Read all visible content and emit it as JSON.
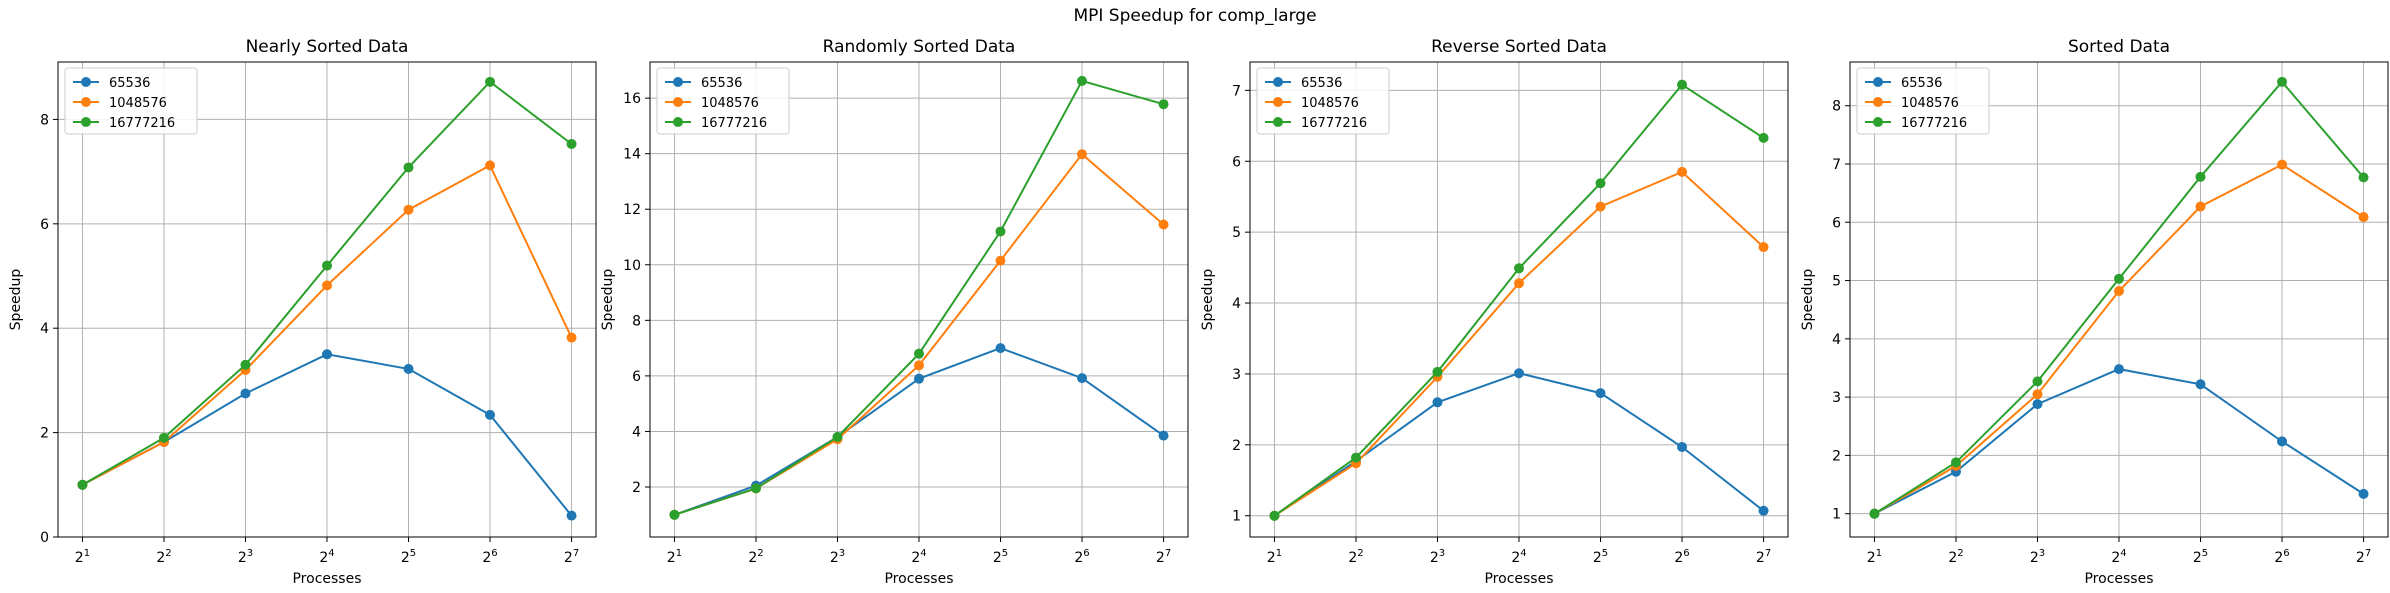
{
  "figure": {
    "title": "MPI Speedup for comp_large"
  },
  "colors": {
    "65536": "#1f77b4",
    "1048576": "#ff7f0e",
    "16777216": "#2ca02c",
    "grid": "#b0b0b0"
  },
  "chart_data": [
    {
      "type": "line",
      "title": "Nearly Sorted Data",
      "xlabel": "Processes",
      "ylabel": "Speedup",
      "x": [
        2,
        4,
        8,
        16,
        32,
        64,
        128
      ],
      "x_scale": "log2",
      "x_tick_labels": [
        {
          "base": "2",
          "exp": "1"
        },
        {
          "base": "2",
          "exp": "2"
        },
        {
          "base": "2",
          "exp": "3"
        },
        {
          "base": "2",
          "exp": "4"
        },
        {
          "base": "2",
          "exp": "5"
        },
        {
          "base": "2",
          "exp": "6"
        },
        {
          "base": "2",
          "exp": "7"
        }
      ],
      "y_ticks": [
        0,
        2,
        4,
        6,
        8
      ],
      "ylim": [
        0,
        9.1
      ],
      "grid": true,
      "legend": "top-left",
      "series": [
        {
          "name": "65536",
          "color": "#1f77b4",
          "values": [
            1.0,
            1.82,
            2.75,
            3.5,
            3.22,
            2.34,
            0.41
          ]
        },
        {
          "name": "1048576",
          "color": "#ff7f0e",
          "values": [
            1.0,
            1.82,
            3.2,
            4.82,
            6.27,
            7.12,
            3.82
          ]
        },
        {
          "name": "16777216",
          "color": "#2ca02c",
          "values": [
            1.0,
            1.9,
            3.3,
            5.2,
            7.08,
            8.72,
            7.53
          ]
        }
      ]
    },
    {
      "type": "line",
      "title": "Randomly Sorted Data",
      "xlabel": "Processes",
      "ylabel": "Speedup",
      "x": [
        2,
        4,
        8,
        16,
        32,
        64,
        128
      ],
      "x_scale": "log2",
      "x_tick_labels": [
        {
          "base": "2",
          "exp": "1"
        },
        {
          "base": "2",
          "exp": "2"
        },
        {
          "base": "2",
          "exp": "3"
        },
        {
          "base": "2",
          "exp": "4"
        },
        {
          "base": "2",
          "exp": "5"
        },
        {
          "base": "2",
          "exp": "6"
        },
        {
          "base": "2",
          "exp": "7"
        }
      ],
      "y_ticks": [
        2,
        4,
        6,
        8,
        10,
        12,
        14,
        16
      ],
      "ylim": [
        0.2,
        17.3
      ],
      "grid": true,
      "legend": "top-left",
      "series": [
        {
          "name": "65536",
          "color": "#1f77b4",
          "values": [
            1.0,
            2.05,
            3.8,
            5.9,
            7.0,
            5.92,
            3.85
          ]
        },
        {
          "name": "1048576",
          "color": "#ff7f0e",
          "values": [
            1.0,
            1.95,
            3.72,
            6.38,
            10.15,
            13.98,
            11.45
          ]
        },
        {
          "name": "16777216",
          "color": "#2ca02c",
          "values": [
            1.0,
            1.95,
            3.8,
            6.8,
            11.2,
            16.62,
            15.78
          ]
        }
      ]
    },
    {
      "type": "line",
      "title": "Reverse Sorted Data",
      "xlabel": "Processes",
      "ylabel": "Speedup",
      "x": [
        2,
        4,
        8,
        16,
        32,
        64,
        128
      ],
      "x_scale": "log2",
      "x_tick_labels": [
        {
          "base": "2",
          "exp": "1"
        },
        {
          "base": "2",
          "exp": "2"
        },
        {
          "base": "2",
          "exp": "3"
        },
        {
          "base": "2",
          "exp": "4"
        },
        {
          "base": "2",
          "exp": "5"
        },
        {
          "base": "2",
          "exp": "6"
        },
        {
          "base": "2",
          "exp": "7"
        }
      ],
      "y_ticks": [
        1,
        2,
        3,
        4,
        5,
        6,
        7
      ],
      "ylim": [
        0.7,
        7.4
      ],
      "grid": true,
      "legend": "top-left",
      "series": [
        {
          "name": "65536",
          "color": "#1f77b4",
          "values": [
            1.0,
            1.77,
            2.6,
            3.01,
            2.73,
            1.97,
            1.07
          ]
        },
        {
          "name": "1048576",
          "color": "#ff7f0e",
          "values": [
            1.0,
            1.74,
            2.96,
            4.28,
            5.36,
            5.85,
            4.79
          ]
        },
        {
          "name": "16777216",
          "color": "#2ca02c",
          "values": [
            1.0,
            1.82,
            3.03,
            4.49,
            5.69,
            7.08,
            6.33
          ]
        }
      ]
    },
    {
      "type": "line",
      "title": "Sorted Data",
      "xlabel": "Processes",
      "ylabel": "Speedup",
      "x": [
        2,
        4,
        8,
        16,
        32,
        64,
        128
      ],
      "x_scale": "log2",
      "x_tick_labels": [
        {
          "base": "2",
          "exp": "1"
        },
        {
          "base": "2",
          "exp": "2"
        },
        {
          "base": "2",
          "exp": "3"
        },
        {
          "base": "2",
          "exp": "4"
        },
        {
          "base": "2",
          "exp": "5"
        },
        {
          "base": "2",
          "exp": "6"
        },
        {
          "base": "2",
          "exp": "7"
        }
      ],
      "y_ticks": [
        1,
        2,
        3,
        4,
        5,
        6,
        7,
        8
      ],
      "ylim": [
        0.6,
        8.75
      ],
      "grid": true,
      "legend": "top-left",
      "series": [
        {
          "name": "65536",
          "color": "#1f77b4",
          "values": [
            1.0,
            1.72,
            2.88,
            3.48,
            3.22,
            2.24,
            1.34
          ]
        },
        {
          "name": "1048576",
          "color": "#ff7f0e",
          "values": [
            1.0,
            1.82,
            3.05,
            4.82,
            6.27,
            6.99,
            6.09
          ]
        },
        {
          "name": "16777216",
          "color": "#2ca02c",
          "values": [
            1.0,
            1.88,
            3.27,
            5.03,
            6.78,
            8.41,
            6.77
          ]
        }
      ]
    }
  ]
}
